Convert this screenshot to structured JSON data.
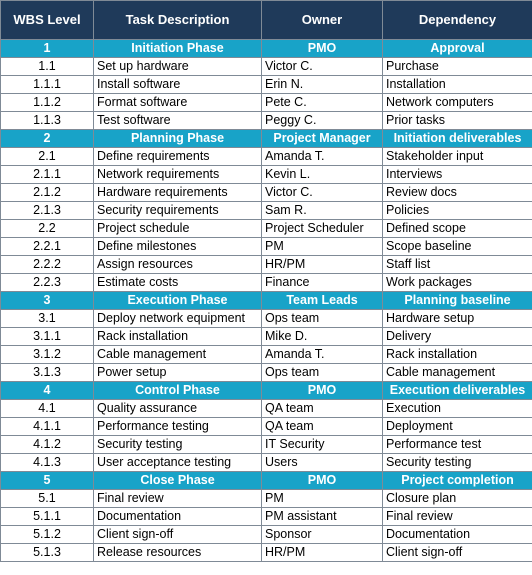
{
  "colors": {
    "header_bg": "#1f3a5a",
    "phase_bg": "#18a3c8",
    "header_text": "#ffffff"
  },
  "headers": {
    "wbs": "WBS Level",
    "task": "Task Description",
    "owner": "Owner",
    "dependency": "Dependency"
  },
  "phases": [
    {
      "wbs": "1",
      "task": "Initiation Phase",
      "owner": "PMO",
      "dependency": "Approval",
      "rows": [
        {
          "wbs": "1.1",
          "task": "Set up hardware",
          "owner": "Victor C.",
          "dependency": "Purchase"
        },
        {
          "wbs": "1.1.1",
          "task": "Install software",
          "owner": "Erin N.",
          "dependency": "Installation"
        },
        {
          "wbs": "1.1.2",
          "task": "Format software",
          "owner": "Pete C.",
          "dependency": "Network computers"
        },
        {
          "wbs": "1.1.3",
          "task": "Test software",
          "owner": "Peggy C.",
          "dependency": "Prior tasks"
        }
      ]
    },
    {
      "wbs": "2",
      "task": "Planning Phase",
      "owner": "Project Manager",
      "dependency": "Initiation deliverables",
      "rows": [
        {
          "wbs": "2.1",
          "task": "Define requirements",
          "owner": "Amanda T.",
          "dependency": "Stakeholder input"
        },
        {
          "wbs": "2.1.1",
          "task": "Network requirements",
          "owner": "Kevin L.",
          "dependency": "Interviews"
        },
        {
          "wbs": "2.1.2",
          "task": "Hardware requirements",
          "owner": "Victor C.",
          "dependency": "Review docs"
        },
        {
          "wbs": "2.1.3",
          "task": "Security requirements",
          "owner": "Sam R.",
          "dependency": "Policies"
        },
        {
          "wbs": "2.2",
          "task": "Project schedule",
          "owner": "Project Scheduler",
          "dependency": "Defined scope"
        },
        {
          "wbs": "2.2.1",
          "task": "Define milestones",
          "owner": "PM",
          "dependency": "Scope baseline"
        },
        {
          "wbs": "2.2.2",
          "task": "Assign resources",
          "owner": "HR/PM",
          "dependency": "Staff list"
        },
        {
          "wbs": "2.2.3",
          "task": "Estimate costs",
          "owner": "Finance",
          "dependency": "Work packages"
        }
      ]
    },
    {
      "wbs": "3",
      "task": "Execution Phase",
      "owner": "Team Leads",
      "dependency": "Planning baseline",
      "rows": [
        {
          "wbs": "3.1",
          "task": "Deploy network equipment",
          "owner": "Ops team",
          "dependency": "Hardware setup"
        },
        {
          "wbs": "3.1.1",
          "task": "Rack installation",
          "owner": "Mike D.",
          "dependency": "Delivery"
        },
        {
          "wbs": "3.1.2",
          "task": "Cable management",
          "owner": "Amanda T.",
          "dependency": "Rack installation"
        },
        {
          "wbs": "3.1.3",
          "task": "Power setup",
          "owner": "Ops team",
          "dependency": "Cable management"
        }
      ]
    },
    {
      "wbs": "4",
      "task": "Control Phase",
      "owner": "PMO",
      "dependency": "Execution deliverables",
      "rows": [
        {
          "wbs": "4.1",
          "task": "Quality assurance",
          "owner": "QA team",
          "dependency": "Execution"
        },
        {
          "wbs": "4.1.1",
          "task": "Performance testing",
          "owner": "QA team",
          "dependency": "Deployment"
        },
        {
          "wbs": "4.1.2",
          "task": "Security testing",
          "owner": "IT Security",
          "dependency": "Performance test"
        },
        {
          "wbs": "4.1.3",
          "task": "User acceptance testing",
          "owner": "Users",
          "dependency": "Security testing"
        }
      ]
    },
    {
      "wbs": "5",
      "task": "Close Phase",
      "owner": "PMO",
      "dependency": "Project completion",
      "rows": [
        {
          "wbs": "5.1",
          "task": "Final review",
          "owner": "PM",
          "dependency": "Closure plan"
        },
        {
          "wbs": "5.1.1",
          "task": "Documentation",
          "owner": "PM assistant",
          "dependency": "Final review"
        },
        {
          "wbs": "5.1.2",
          "task": "Client sign-off",
          "owner": "Sponsor",
          "dependency": "Documentation"
        },
        {
          "wbs": "5.1.3",
          "task": "Release resources",
          "owner": "HR/PM",
          "dependency": "Client sign-off"
        }
      ]
    }
  ]
}
